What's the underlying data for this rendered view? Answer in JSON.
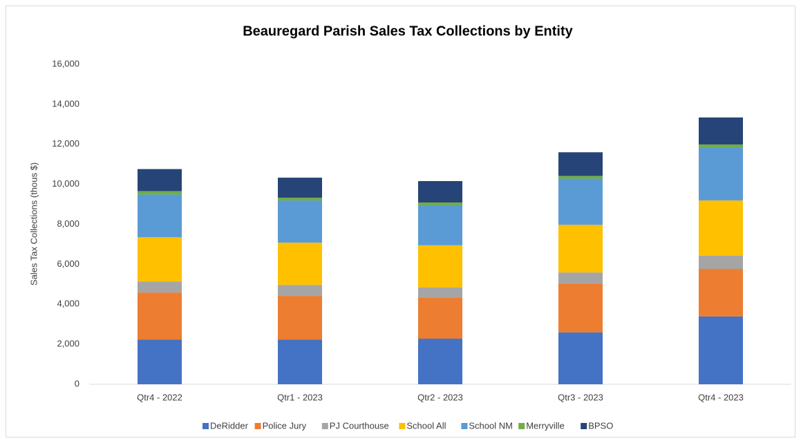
{
  "chart_data": {
    "type": "stacked_bar",
    "title": "Beauregard Parish Sales Tax Collections by Entity",
    "y_label": "Sales Tax Collections (thous $)",
    "categories": [
      "Qtr4 - 2022",
      "Qtr1 - 2023",
      "Qtr2 - 2023",
      "Qtr3 - 2023",
      "Qtr4 - 2023"
    ],
    "series": [
      {
        "name": "DeRidder",
        "color": "#4472c4",
        "values": [
          2230,
          2230,
          2280,
          2590,
          3390
        ]
      },
      {
        "name": "Police Jury",
        "color": "#ed7d31",
        "values": [
          2360,
          2190,
          2040,
          2450,
          2380
        ]
      },
      {
        "name": "PJ Courthouse",
        "color": "#a5a5a5",
        "values": [
          550,
          550,
          520,
          550,
          660
        ]
      },
      {
        "name": "School All",
        "color": "#ffc000",
        "values": [
          2210,
          2110,
          2110,
          2380,
          2760
        ]
      },
      {
        "name": "School NM",
        "color": "#5b9bd5",
        "values": [
          2140,
          2110,
          2000,
          2310,
          2630
        ]
      },
      {
        "name": "Merryville",
        "color": "#70ad47",
        "values": [
          170,
          140,
          140,
          140,
          170
        ]
      },
      {
        "name": "BPSO",
        "color": "#264478",
        "values": [
          1100,
          1000,
          1070,
          1180,
          1350
        ]
      }
    ],
    "ylim": [
      0,
      16000
    ],
    "yticks": [
      0,
      {
        "value": 2000,
        "label": "2,000"
      },
      {
        "value": 4000,
        "label": "4,000"
      },
      {
        "value": 6000,
        "label": "6,000"
      },
      {
        "value": 8000,
        "label": "8,000"
      },
      {
        "value": 10000,
        "label": "10,000"
      },
      {
        "value": 12000,
        "label": "12,000"
      },
      {
        "value": 14000,
        "label": "14,000"
      },
      {
        "value": 16000,
        "label": "16,000"
      }
    ],
    "grid": false,
    "legend": "bottom"
  }
}
